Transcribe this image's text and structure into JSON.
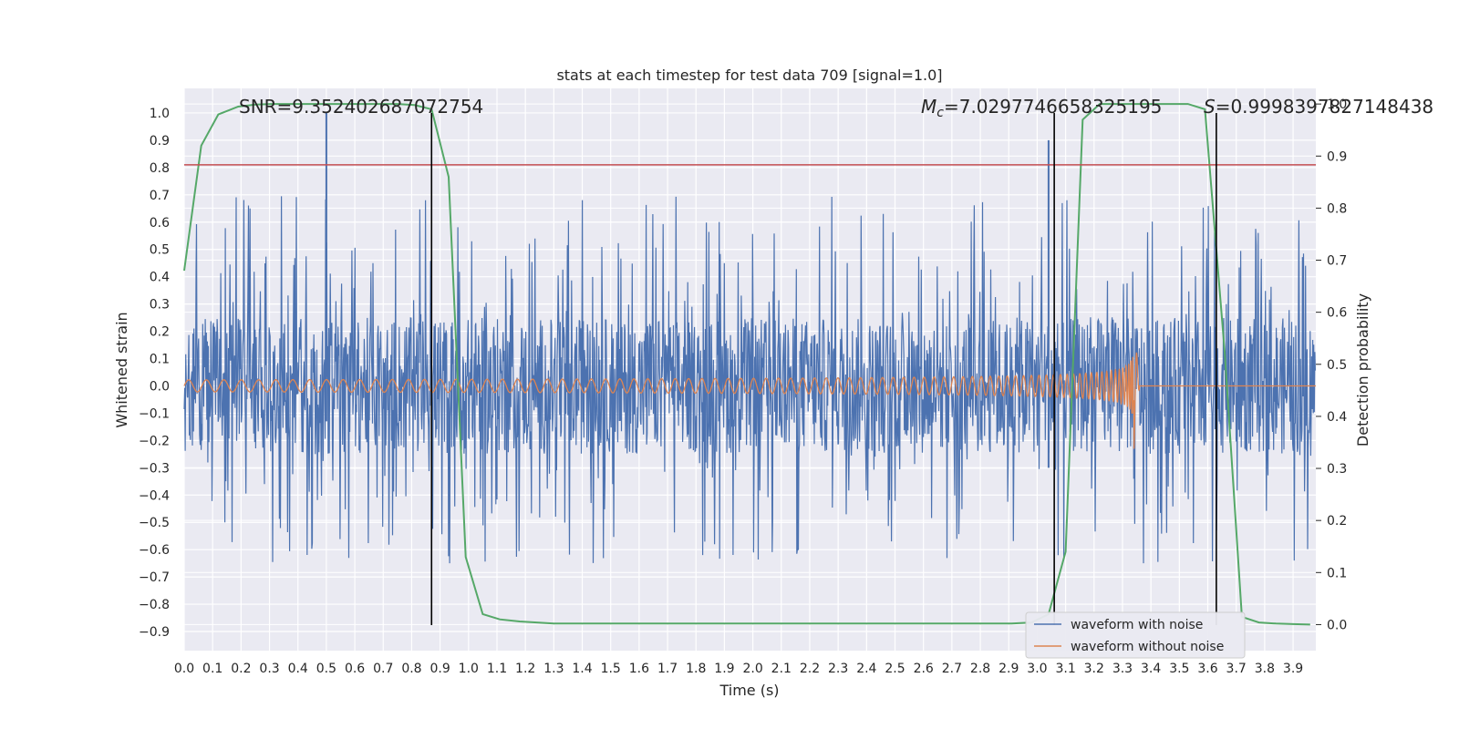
{
  "chart_data": {
    "type": "line",
    "title": "stats at each timestep for test data 709 [signal=1.0]",
    "xlabel": "Time (s)",
    "ylabel": "Whitened strain",
    "ylabel_right": "Detection probability",
    "xlim": [
      0.0,
      3.98
    ],
    "ylim": [
      -0.97,
      1.09
    ],
    "ylim_right": [
      -0.05,
      1.03
    ],
    "x_ticks": [
      "0.0",
      "0.1",
      "0.2",
      "0.3",
      "0.4",
      "0.5",
      "0.6",
      "0.7",
      "0.8",
      "0.9",
      "1.0",
      "1.1",
      "1.2",
      "1.3",
      "1.4",
      "1.5",
      "1.6",
      "1.7",
      "1.8",
      "1.9",
      "2.0",
      "2.1",
      "2.2",
      "2.3",
      "2.4",
      "2.5",
      "2.6",
      "2.7",
      "2.8",
      "2.9",
      "3.0",
      "3.1",
      "3.2",
      "3.3",
      "3.4",
      "3.5",
      "3.6",
      "3.7",
      "3.8",
      "3.9"
    ],
    "y_ticks": [
      "1.0",
      "0.9",
      "0.8",
      "0.7",
      "0.6",
      "0.5",
      "0.4",
      "0.3",
      "0.2",
      "0.1",
      "0.0",
      "−0.1",
      "−0.2",
      "−0.3",
      "−0.4",
      "−0.5",
      "−0.6",
      "−0.7",
      "−0.8",
      "−0.9"
    ],
    "y_tick_values": [
      1.0,
      0.9,
      0.8,
      0.7,
      0.6,
      0.5,
      0.4,
      0.3,
      0.2,
      0.1,
      0.0,
      -0.1,
      -0.2,
      -0.3,
      -0.4,
      -0.5,
      -0.6,
      -0.7,
      -0.8,
      -0.9
    ],
    "y_ticks_right": [
      "1.0",
      "0.9",
      "0.8",
      "0.7",
      "0.6",
      "0.5",
      "0.4",
      "0.3",
      "0.2",
      "0.1",
      "0.0"
    ],
    "y_tick_values_right": [
      1.0,
      0.9,
      0.8,
      0.7,
      0.6,
      0.5,
      0.4,
      0.3,
      0.2,
      0.1,
      0.0
    ],
    "threshold": 0.81,
    "vertical_lines": [
      0.87,
      3.06,
      3.63
    ],
    "peak_spikes": [
      {
        "t": 0.5,
        "low": -0.13,
        "high": 1.0
      },
      {
        "t": 3.04,
        "low": -0.3,
        "high": 0.9
      }
    ],
    "annotations": {
      "snr": "SNR=9.352402687072754",
      "mc_symbol": "M",
      "mc_sub": "c",
      "mc_value": "=7.0297746658325195",
      "s_symbol": "S",
      "s_value": "=0.9998397827148438"
    },
    "series": [
      {
        "name": "waveform with noise",
        "color": "#4c72b0"
      },
      {
        "name": "waveform without noise",
        "color": "#dd8452"
      },
      {
        "name": "detection probability",
        "color": "#55a868",
        "x": [
          0.0,
          0.06,
          0.12,
          0.19,
          0.25,
          0.31,
          0.37,
          0.43,
          0.5,
          0.56,
          0.62,
          0.68,
          0.75,
          0.81,
          0.87,
          0.93,
          0.99,
          1.05,
          1.11,
          1.18,
          1.24,
          1.3,
          1.36,
          1.42,
          1.49,
          1.55,
          1.61,
          1.67,
          1.74,
          1.8,
          1.86,
          1.92,
          1.98,
          2.04,
          2.11,
          2.17,
          2.23,
          2.29,
          2.36,
          2.42,
          2.48,
          2.54,
          2.6,
          2.67,
          2.73,
          2.79,
          2.85,
          2.91,
          2.98,
          3.04,
          3.1,
          3.16,
          3.22,
          3.29,
          3.35,
          3.41,
          3.47,
          3.53,
          3.59,
          3.66,
          3.72,
          3.78,
          3.84,
          3.9,
          3.96
        ],
        "y": [
          0.68,
          0.92,
          0.98,
          0.995,
          0.999,
          1.0,
          1.0,
          1.0,
          1.0,
          1.0,
          1.0,
          1.0,
          1.0,
          0.998,
          0.99,
          0.86,
          0.13,
          0.02,
          0.01,
          0.006,
          0.004,
          0.002,
          0.002,
          0.002,
          0.002,
          0.002,
          0.002,
          0.002,
          0.002,
          0.002,
          0.002,
          0.002,
          0.002,
          0.002,
          0.002,
          0.002,
          0.002,
          0.002,
          0.002,
          0.002,
          0.002,
          0.002,
          0.002,
          0.002,
          0.002,
          0.002,
          0.002,
          0.002,
          0.004,
          0.02,
          0.14,
          0.97,
          1.0,
          1.0,
          1.0,
          1.0,
          1.0,
          1.0,
          0.99,
          0.52,
          0.015,
          0.004,
          0.002,
          0.001,
          0.0
        ]
      }
    ],
    "legend": [
      "waveform with noise",
      "waveform without noise"
    ],
    "legend_position": "bottom-right",
    "grid": true
  }
}
